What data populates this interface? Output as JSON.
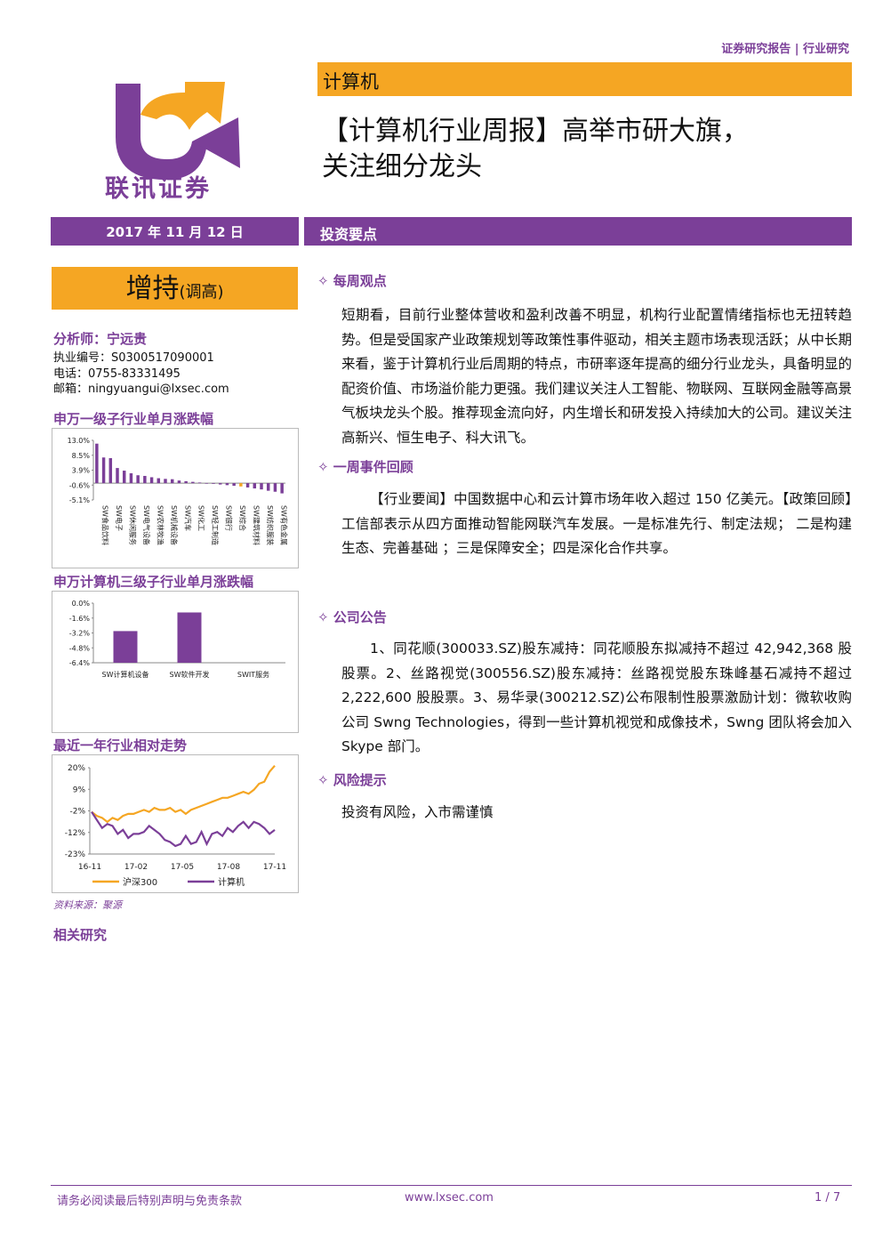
{
  "header": {
    "report_type": "证券研究报告 | 行业研究"
  },
  "logo": {
    "company": "联讯证券"
  },
  "sector": "计算机",
  "title_line1": "【计算机行业周报】高举市研大旗，",
  "title_line2": "关注细分龙头",
  "date": "2017 年 11 月 12 日",
  "keypoints_heading": "投资要点",
  "rating": {
    "main": "增持",
    "sub": "(调高)"
  },
  "analyst": {
    "name_line": "分析师：宁远贵",
    "license": "执业编号：S0300517090001",
    "phone": "电话：0755-83331495",
    "email": "邮箱：ningyuangui@lxsec.com"
  },
  "sidebar_headings": {
    "chart1": "申万一级子行业单月涨跌幅",
    "chart2": "申万计算机三级子行业单月涨跌幅",
    "chart3": "最近一年行业相对走势",
    "source": "资料来源：聚源",
    "related": "相关研究"
  },
  "chart_data": [
    {
      "type": "bar",
      "title": "申万一级子行业单月涨跌幅",
      "y_ticks": [
        "13.0%",
        "8.5%",
        "3.9%",
        "-0.6%",
        "-5.1%"
      ],
      "ylim": [
        -5.1,
        13.0
      ],
      "x_tick_labels": [
        "SW食品饮料",
        "SW电子",
        "SW休闲服务",
        "SW电气设备",
        "SW农林牧渔",
        "SW机械设备",
        "SW汽车",
        "SW化工",
        "SW轻工制造",
        "SW银行",
        "SW综合",
        "SW建筑材料",
        "SW纺织服装",
        "SW有色金属"
      ],
      "values": [
        12.0,
        7.8,
        7.6,
        4.6,
        3.8,
        3.0,
        2.4,
        2.2,
        1.8,
        1.5,
        1.3,
        1.2,
        0.8,
        0.6,
        0.4,
        0.2,
        0.0,
        -0.2,
        -0.4,
        -0.6,
        -0.8,
        -1.0,
        -1.3,
        -1.6,
        -1.9,
        -2.3,
        -2.6,
        -3.1
      ],
      "highlight_index": 21,
      "colors": {
        "bar": "#7B3F98",
        "highlight": "#F5A623"
      }
    },
    {
      "type": "bar",
      "title": "申万计算机三级子行业单月涨跌幅",
      "y_ticks": [
        "0.0%",
        "-1.6%",
        "-3.2%",
        "-4.8%",
        "-6.4%"
      ],
      "ylim": [
        -6.4,
        0.0
      ],
      "categories": [
        "SW计算机设备",
        "SW软件开发",
        "SWIT服务"
      ],
      "values": [
        -3.0,
        -1.0,
        -6.4
      ],
      "show_bars": [
        true,
        true,
        false
      ],
      "colors": {
        "bar": "#7B3F98"
      }
    },
    {
      "type": "line",
      "title": "最近一年行业相对走势",
      "y_ticks": [
        "20%",
        "9%",
        "-2%",
        "-12%",
        "-23%"
      ],
      "ylim": [
        -23,
        20
      ],
      "x_ticks": [
        "16-11",
        "17-02",
        "17-05",
        "17-08",
        "17-11"
      ],
      "series": [
        {
          "name": "沪深300",
          "color": "#F5A623",
          "values": [
            -2,
            -4,
            -5,
            -7,
            -5,
            -6,
            -4,
            -3,
            -3,
            -2,
            -1,
            -2,
            0,
            -1,
            -1,
            0,
            -2,
            -1,
            -3,
            -1,
            0,
            1,
            2,
            3,
            4,
            5,
            5,
            6,
            7,
            8,
            7,
            9,
            12,
            13,
            18,
            21
          ]
        },
        {
          "name": "计算机",
          "color": "#7B3F98",
          "values": [
            -2,
            -6,
            -10,
            -8,
            -9,
            -13,
            -11,
            -15,
            -13,
            -13,
            -12,
            -9,
            -11,
            -13,
            -16,
            -17,
            -19,
            -18,
            -14,
            -18,
            -17,
            -12,
            -18,
            -13,
            -12,
            -14,
            -10,
            -12,
            -9,
            -7,
            -10,
            -7,
            -8,
            -10,
            -13,
            -11
          ]
        }
      ]
    }
  ],
  "sections": {
    "weekly_view": {
      "heading": "✧ 每周观点",
      "text": "短期看，目前行业整体营收和盈利改善不明显，机构行业配置情绪指标也无扭转趋势。但是受国家产业政策规划等政策性事件驱动，相关主题市场表现活跃；从中长期来看，鉴于计算机行业后周期的特点，市研率逐年提高的细分行业龙头，具备明显的配资价值、市场溢价能力更强。我们建议关注人工智能、物联网、互联网金融等高景气板块龙头个股。推荐现金流向好，内生增长和研发投入持续加大的公司。建议关注高新兴、恒生电子、科大讯飞。"
    },
    "weekly_events": {
      "heading": "✧ 一周事件回顾",
      "text": "【行业要闻】中国数据中心和云计算市场年收入超过 150 亿美元。【政策回顾】工信部表示从四方面推动智能网联汽车发展。一是标准先行、制定法规；  二是构建生态、完善基础 ；三是保障安全；四是深化合作共享。"
    },
    "announcements": {
      "heading": "✧ 公司公告",
      "text": "1、同花顺(300033.SZ)股东减持：同花顺股东拟减持不超过 42,942,368 股股票。2、丝路视觉(300556.SZ)股东减持：丝路视觉股东珠峰基石减持不超过 2,222,600 股股票。3、易华录(300212.SZ)公布限制性股票激励计划：微软收购公司 Swng Technologies，得到一些计算机视觉和成像技术，Swng 团队将会加入 Skype 部门。"
    },
    "risk": {
      "heading": "✧ 风险提示",
      "text": "投资有风险，入市需谨慎"
    }
  },
  "footer": {
    "disclaimer": "请务必阅读最后特别声明与免责条款",
    "website": "www.lxsec.com",
    "page": "1 / 7"
  }
}
